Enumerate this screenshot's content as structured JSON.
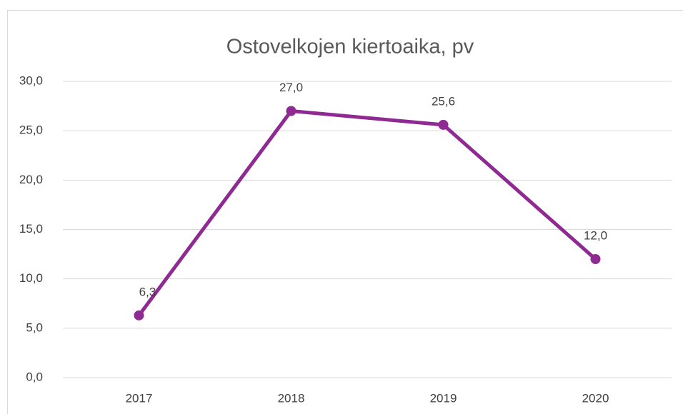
{
  "chart_data": {
    "type": "line",
    "title": "Ostovelkojen kiertoaika, pv",
    "categories": [
      "2017",
      "2018",
      "2019",
      "2020"
    ],
    "values": [
      6.3,
      27.0,
      25.6,
      12.0
    ],
    "value_labels": [
      "6,3",
      "27,0",
      "25,6",
      "12,0"
    ],
    "color": "#8e2a92",
    "ylim": [
      0,
      30
    ],
    "yticks": [
      {
        "value": 0,
        "label": "0,0"
      },
      {
        "value": 5,
        "label": "5,0"
      },
      {
        "value": 10,
        "label": "10,0"
      },
      {
        "value": 15,
        "label": "15,0"
      },
      {
        "value": 20,
        "label": "20,0"
      },
      {
        "value": 25,
        "label": "25,0"
      },
      {
        "value": 30,
        "label": "30,0"
      }
    ],
    "grid": true
  }
}
